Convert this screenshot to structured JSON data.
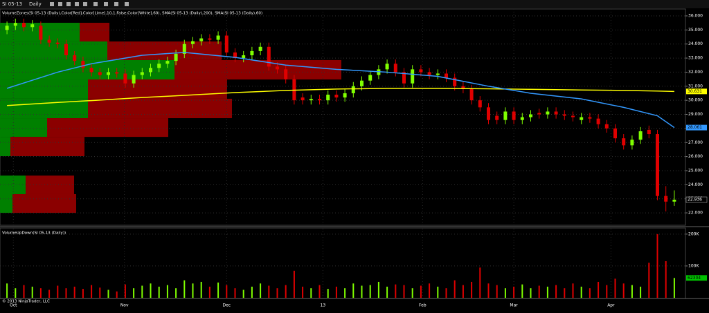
{
  "toolbar": {
    "instrument": "SI 05-13",
    "interval": "Daily"
  },
  "copyright": "© 2013 NinjaTrader, LLC",
  "chart_data": [
    {
      "type": "candlestick",
      "title": "VolumeZones(SI 05-13 (Daily),Color[Red],Color[Lime],10,1,False,Color[White],60), SMA(SI 05-13 (Daily),200), SMA(SI 05-13 (Daily),60)",
      "open": [
        35.0,
        35.3,
        35.5,
        35.2,
        35.3,
        34.3,
        34.1,
        34.0,
        33.2,
        32.8,
        32.3,
        32.0,
        31.8,
        32.0,
        31.9,
        31.2,
        31.8,
        32.0,
        32.3,
        32.6,
        32.8,
        33.3,
        34.0,
        34.2,
        34.4,
        34.3,
        34.6,
        33.4,
        33.0,
        33.2,
        33.5,
        33.8,
        32.4,
        32.2,
        31.5,
        30.2,
        30.0,
        30.1,
        30.0,
        30.4,
        30.2,
        30.5,
        31.0,
        31.4,
        31.8,
        32.2,
        32.6,
        32.0,
        31.2,
        32.2,
        32.0,
        31.8,
        31.9,
        31.6,
        31.0,
        30.8,
        30.0,
        29.5,
        28.9,
        28.6,
        29.2,
        28.6,
        28.8,
        29.1,
        29.0,
        29.2,
        29.0,
        28.9,
        28.6,
        28.8,
        28.7,
        28.3,
        28.0,
        27.3,
        26.8,
        27.2,
        27.9,
        27.6,
        23.2,
        22.8
      ],
      "high": [
        35.6,
        35.8,
        35.8,
        35.7,
        35.6,
        34.6,
        34.4,
        34.3,
        33.5,
        33.1,
        32.6,
        32.3,
        32.3,
        32.3,
        32.2,
        32.1,
        32.3,
        32.6,
        32.9,
        33.1,
        33.6,
        34.3,
        34.5,
        34.7,
        34.7,
        34.9,
        34.9,
        33.7,
        33.5,
        33.8,
        34.1,
        34.1,
        32.7,
        32.5,
        31.8,
        30.5,
        30.4,
        30.4,
        30.7,
        30.7,
        30.8,
        31.3,
        31.7,
        32.1,
        32.5,
        32.9,
        32.9,
        32.3,
        32.5,
        32.5,
        32.3,
        32.2,
        32.2,
        31.9,
        31.3,
        31.1,
        30.3,
        29.8,
        29.2,
        29.5,
        29.5,
        29.1,
        29.3,
        29.4,
        29.5,
        29.5,
        29.3,
        29.2,
        29.1,
        29.1,
        29.0,
        28.6,
        28.3,
        27.6,
        27.5,
        28.1,
        28.2,
        27.9,
        23.9,
        23.6
      ],
      "low": [
        34.7,
        35.0,
        34.9,
        34.9,
        34.0,
        33.8,
        33.7,
        32.9,
        32.5,
        32.0,
        31.7,
        31.5,
        31.5,
        31.6,
        30.9,
        30.9,
        31.5,
        31.7,
        32.0,
        32.3,
        32.5,
        33.0,
        33.7,
        33.9,
        34.0,
        34.0,
        33.1,
        32.7,
        32.7,
        32.9,
        33.2,
        32.1,
        31.9,
        31.2,
        29.7,
        29.7,
        29.7,
        29.7,
        29.7,
        29.9,
        29.9,
        30.2,
        30.7,
        31.1,
        31.5,
        31.9,
        31.7,
        30.9,
        30.9,
        31.7,
        31.5,
        31.5,
        31.3,
        30.7,
        30.5,
        29.7,
        29.2,
        28.3,
        28.3,
        28.3,
        28.3,
        28.3,
        28.5,
        28.7,
        28.7,
        28.7,
        28.6,
        28.5,
        28.3,
        28.4,
        28.0,
        27.7,
        27.0,
        26.5,
        26.5,
        26.9,
        27.3,
        22.9,
        22.1,
        22.5
      ],
      "close": [
        35.3,
        35.5,
        35.2,
        35.4,
        34.3,
        34.1,
        34.0,
        33.2,
        32.8,
        32.3,
        32.0,
        31.8,
        32.0,
        31.9,
        31.2,
        31.8,
        32.0,
        32.3,
        32.6,
        32.8,
        33.3,
        34.0,
        34.2,
        34.4,
        34.3,
        34.6,
        33.4,
        33.0,
        33.2,
        33.5,
        33.8,
        32.4,
        32.2,
        31.5,
        30.0,
        30.0,
        30.1,
        30.0,
        30.4,
        30.2,
        30.5,
        31.0,
        31.4,
        31.8,
        32.2,
        32.6,
        32.0,
        31.2,
        32.2,
        32.0,
        31.8,
        31.9,
        31.6,
        31.0,
        30.8,
        30.0,
        29.5,
        28.6,
        28.6,
        29.2,
        28.6,
        28.8,
        29.0,
        29.0,
        29.2,
        29.0,
        28.9,
        28.8,
        28.8,
        28.7,
        28.3,
        28.0,
        27.3,
        26.8,
        27.2,
        27.8,
        27.6,
        23.2,
        22.8,
        22.936
      ],
      "up_color": "#80ff00",
      "down_color": "#e00000",
      "zones": {
        "bins": [
          35.51,
          34.18,
          32.86,
          31.48,
          30.11,
          28.73,
          27.4,
          26.03,
          24.65,
          23.33,
          22.0
        ],
        "up": [
          115,
          155,
          252,
          127,
          127,
          68,
          15,
          0,
          37,
          18
        ],
        "down": [
          43,
          165,
          241,
          201,
          208,
          175,
          107,
          0,
          70,
          92
        ],
        "up_color": "#008000",
        "down_color": "#8b0000"
      },
      "series": [
        {
          "name": "SMA(200)",
          "color": "#ffff00",
          "x": [
            0,
            6,
            10,
            16,
            21,
            27,
            33,
            39,
            45,
            51,
            57,
            62,
            68,
            73,
            77,
            79
          ],
          "values": [
            29.63,
            29.85,
            29.98,
            30.2,
            30.35,
            30.55,
            30.7,
            30.8,
            30.85,
            30.85,
            30.82,
            30.78,
            30.73,
            30.7,
            30.66,
            30.631
          ]
        },
        {
          "name": "SMA(60)",
          "color": "#3399ff",
          "x": [
            0,
            6,
            10,
            16,
            21,
            27,
            33,
            39,
            45,
            51,
            57,
            62,
            68,
            73,
            77,
            79
          ],
          "values": [
            30.85,
            32.0,
            32.6,
            33.2,
            33.4,
            33.05,
            32.5,
            32.2,
            32.0,
            31.7,
            31.0,
            30.5,
            30.1,
            29.5,
            28.9,
            28.061
          ]
        }
      ],
      "xlim": [
        0,
        80
      ],
      "ylim": [
        21.12,
        36.49
      ],
      "yticks": [
        {
          "value": 22,
          "label": "22.000"
        },
        {
          "value": 23,
          "label": "23.000"
        },
        {
          "value": 24,
          "label": "24.000"
        },
        {
          "value": 25,
          "label": "25.000"
        },
        {
          "value": 26,
          "label": "26.000"
        },
        {
          "value": 27,
          "label": "27.000"
        },
        {
          "value": 28,
          "label": "28.000"
        },
        {
          "value": 29,
          "label": "29.000"
        },
        {
          "value": 30,
          "label": "30.000"
        },
        {
          "value": 31,
          "label": "31.000"
        },
        {
          "value": 32,
          "label": "32.000"
        },
        {
          "value": 33,
          "label": "33.000"
        },
        {
          "value": 34,
          "label": "34.000"
        },
        {
          "value": 35,
          "label": "35.000"
        },
        {
          "value": 36,
          "label": "36.000"
        }
      ],
      "grid": true
    },
    {
      "type": "bar",
      "title": "VolumeUpDown(SI 05-13 (Daily))",
      "values": [
        45000,
        30000,
        40000,
        35000,
        30000,
        25000,
        38000,
        30000,
        35000,
        28000,
        40000,
        32000,
        25000,
        20000,
        42000,
        30000,
        38000,
        45000,
        35000,
        40000,
        30000,
        55000,
        45000,
        50000,
        35000,
        48000,
        40000,
        30000,
        25000,
        35000,
        45000,
        38000,
        30000,
        40000,
        85000,
        35000,
        30000,
        40000,
        28000,
        35000,
        30000,
        45000,
        38000,
        40000,
        50000,
        35000,
        42000,
        40000,
        30000,
        38000,
        45000,
        35000,
        30000,
        55000,
        40000,
        50000,
        95000,
        45000,
        40000,
        30000,
        35000,
        42000,
        30000,
        38000,
        35000,
        40000,
        30000,
        45000,
        35000,
        30000,
        50000,
        40000,
        60000,
        45000,
        40000,
        35000,
        110000,
        200000,
        115000,
        62304
      ],
      "xlim": [
        0,
        80
      ],
      "ylim": [
        0,
        217000
      ],
      "yticks": [
        {
          "value": 100000,
          "label": "100K"
        },
        {
          "value": 200000,
          "label": "200K"
        }
      ],
      "xticks": [
        {
          "value": 0.75,
          "label": "Oct"
        },
        {
          "value": 13.9,
          "label": "Nov"
        },
        {
          "value": 26,
          "label": "Dec"
        },
        {
          "value": 37.4,
          "label": "13"
        },
        {
          "value": 49.2,
          "label": "Feb"
        },
        {
          "value": 60,
          "label": "Mar"
        },
        {
          "value": 71.5,
          "label": "Apr"
        }
      ],
      "grid": true
    }
  ]
}
